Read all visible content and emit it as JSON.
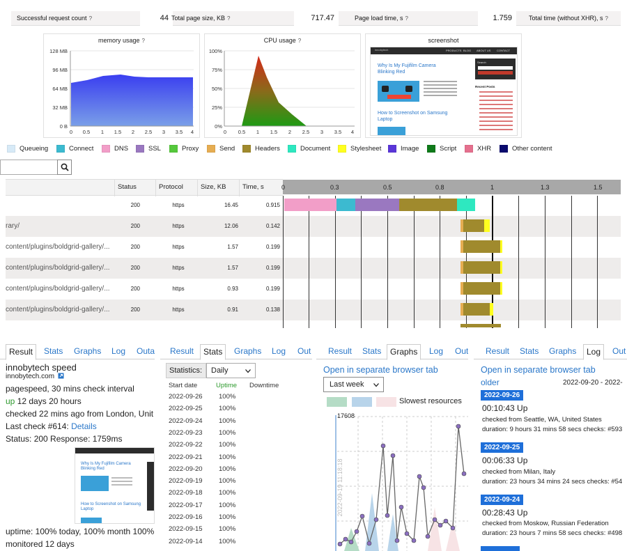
{
  "stats": [
    {
      "label": "Successful request count",
      "value": "44"
    },
    {
      "label": "Total page size, KB",
      "value": "717.47"
    },
    {
      "label": "Page load time, s",
      "value": "1.759"
    },
    {
      "label": "Total time (without XHR), s",
      "value": ""
    }
  ],
  "question_mark": "?",
  "memory": {
    "title": "memory usage",
    "yticks": [
      "128 MB",
      "96 MB",
      "64 MB",
      "32 MB",
      "0 B"
    ],
    "xticks": [
      "0",
      "0.5",
      "1",
      "1.5",
      "2",
      "2.5",
      "3",
      "3.5",
      "4"
    ]
  },
  "cpu": {
    "title": "CPU usage",
    "yticks": [
      "100%",
      "75%",
      "50%",
      "25%",
      "0%"
    ],
    "xticks": [
      "0",
      "0.5",
      "1",
      "1.5",
      "2",
      "2.5",
      "3",
      "3.5",
      "4"
    ]
  },
  "screenshot": {
    "title": "screenshot",
    "nav": [
      "PRODUCTS",
      "BLOG",
      "ABOUT US",
      "CONTACT"
    ],
    "post1": "Why Is My Fujifilm Camera Blinking Red",
    "post2": "How to Screenshot on Samsung Laptop",
    "sidebar_title": "Recent Posts",
    "search_label": "Search"
  },
  "legend": [
    "Queueing",
    "Connect",
    "DNS",
    "SSL",
    "Proxy",
    "Send",
    "Headers",
    "Document",
    "Stylesheet",
    "Image",
    "Script",
    "XHR",
    "Other content"
  ],
  "legend_colors": [
    "#d7eaf7",
    "#3cbad0",
    "#f29ec8",
    "#9a78c0",
    "#55c83c",
    "#e6ad52",
    "#a08a2d",
    "#2ee8c0",
    "#ffff20",
    "#5a36d8",
    "#0f7a1a",
    "#e5708e",
    "#0a0a6e"
  ],
  "table": {
    "headers": [
      "Status",
      "Protocol",
      "Size, KB",
      "Time, s"
    ],
    "axis_ticks": [
      "0",
      "0.3",
      "0.5",
      "0.8",
      "1",
      "1.3",
      "1.5"
    ],
    "rows": [
      {
        "url": "",
        "status": "200",
        "protocol": "https",
        "size": "16.45",
        "time": "0.915"
      },
      {
        "url": "rary/",
        "status": "200",
        "protocol": "https",
        "size": "12.06",
        "time": "0.142"
      },
      {
        "url": "content/plugins/boldgrid-gallery/...",
        "status": "200",
        "protocol": "https",
        "size": "1.57",
        "time": "0.199"
      },
      {
        "url": "content/plugins/boldgrid-gallery/...",
        "status": "200",
        "protocol": "https",
        "size": "1.57",
        "time": "0.199"
      },
      {
        "url": "content/plugins/boldgrid-gallery/...",
        "status": "200",
        "protocol": "https",
        "size": "0.93",
        "time": "0.199"
      },
      {
        "url": "content/plugins/boldgrid-gallery/...",
        "status": "200",
        "protocol": "https",
        "size": "0.91",
        "time": "0.138"
      }
    ]
  },
  "tabs": [
    "Result",
    "Stats",
    "Graphs",
    "Log",
    "Outa"
  ],
  "tabs_short": [
    "Result",
    "Stats",
    "Graphs",
    "Log",
    "Out"
  ],
  "panel1": {
    "title": "innobytech speed",
    "domain": "innobytech.com",
    "line1": "pagespeed, 30 mins check interval",
    "up": "up",
    "uptime_dur": "12 days 20 hours",
    "checked": "checked 22 mins ago from London, Unit",
    "lastcheck": "Last check #614:",
    "details": "Details",
    "status": "Status: 200 Response: 1759ms",
    "uptime": "uptime: 100% today, 100% month 100%",
    "monitored": "monitored 12 days"
  },
  "panel2": {
    "statistics_label": "Statistics:",
    "period": "Daily",
    "col_start": "Start date",
    "col_uptime": "Uptime",
    "col_downtime": "Downtime",
    "rows": [
      [
        "2022-09-26",
        "100%"
      ],
      [
        "2022-09-25",
        "100%"
      ],
      [
        "2022-09-24",
        "100%"
      ],
      [
        "2022-09-23",
        "100%"
      ],
      [
        "2022-09-22",
        "100%"
      ],
      [
        "2022-09-21",
        "100%"
      ],
      [
        "2022-09-20",
        "100%"
      ],
      [
        "2022-09-19",
        "100%"
      ],
      [
        "2022-09-18",
        "100%"
      ],
      [
        "2022-09-17",
        "100%"
      ],
      [
        "2022-09-16",
        "100%"
      ],
      [
        "2022-09-15",
        "100%"
      ],
      [
        "2022-09-14",
        "100%"
      ]
    ]
  },
  "panel3": {
    "open_tab": "Open in separate browser tab",
    "period": "Last week",
    "slowest": "Slowest resources",
    "ymax": "17608",
    "date_label": "2022-09-19 11:18:18"
  },
  "panel4": {
    "open_tab": "Open in separate browser tab",
    "older": "older",
    "range": "2022-09-20 - 2022-",
    "entries": [
      {
        "date": "2022-09-26",
        "uptime": "00:10:43 Up",
        "from": "checked from Seattle, WA, United States",
        "duration": "duration: 9 hours 31 mins 58 secs checks: #593"
      },
      {
        "date": "2022-09-25",
        "uptime": "00:06:33 Up",
        "from": "checked from Milan, Italy",
        "duration": "duration: 23 hours 34 mins 24 secs checks: #54"
      },
      {
        "date": "2022-09-24",
        "uptime": "00:28:43 Up",
        "from": "checked from Moskow, Russian Federation",
        "duration": "duration: 23 hours 7 mins 58 secs checks: #498"
      }
    ]
  }
}
